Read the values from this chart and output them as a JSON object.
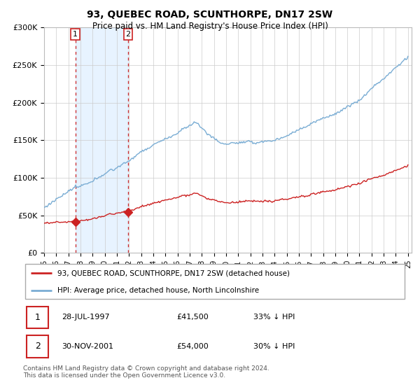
{
  "title": "93, QUEBEC ROAD, SCUNTHORPE, DN17 2SW",
  "subtitle": "Price paid vs. HM Land Registry's House Price Index (HPI)",
  "ylim": [
    0,
    300000
  ],
  "yticks": [
    0,
    50000,
    100000,
    150000,
    200000,
    250000,
    300000
  ],
  "ytick_labels": [
    "£0",
    "£50K",
    "£100K",
    "£150K",
    "£200K",
    "£250K",
    "£300K"
  ],
  "hpi_color": "#7aadd4",
  "price_color": "#cc2222",
  "shade_color": "#ddeeff",
  "transaction1": {
    "date_num": 1997.57,
    "price": 41500,
    "label": "1"
  },
  "transaction2": {
    "date_num": 2001.92,
    "price": 54000,
    "label": "2"
  },
  "legend_line1": "93, QUEBEC ROAD, SCUNTHORPE, DN17 2SW (detached house)",
  "legend_line2": "HPI: Average price, detached house, North Lincolnshire",
  "table_row1": [
    "1",
    "28-JUL-1997",
    "£41,500",
    "33% ↓ HPI"
  ],
  "table_row2": [
    "2",
    "30-NOV-2001",
    "£54,000",
    "30% ↓ HPI"
  ],
  "footer": "Contains HM Land Registry data © Crown copyright and database right 2024.\nThis data is licensed under the Open Government Licence v3.0."
}
